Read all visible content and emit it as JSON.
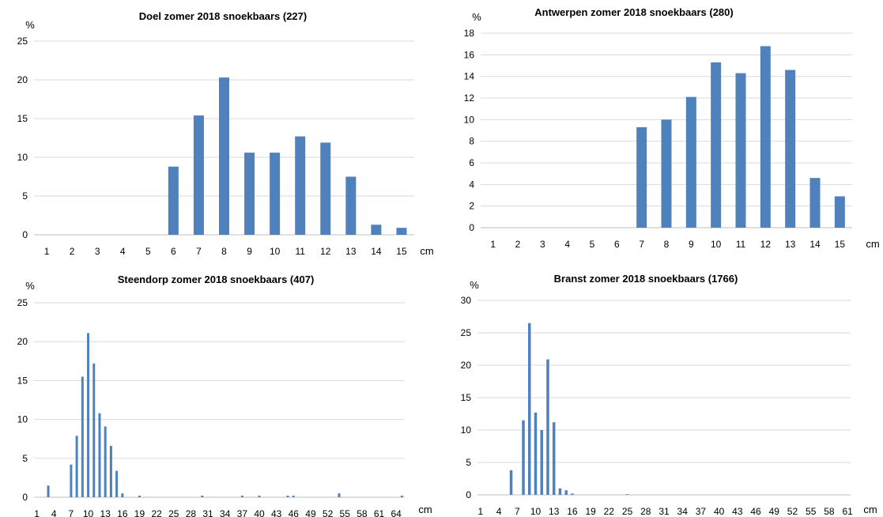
{
  "colors": {
    "bar": "#4f81bd",
    "grid": "#d9d9d9",
    "axis": "#bfbfbf"
  },
  "chart_data": [
    {
      "type": "bar",
      "title": "Doel zomer 2018 snoekbaars (227)",
      "ylabel": "%",
      "xlabel": "cm",
      "ylim": [
        0,
        25
      ],
      "yticks": [
        0,
        5,
        10,
        15,
        20,
        25
      ],
      "grid": true,
      "categories": [
        1,
        2,
        3,
        4,
        5,
        6,
        7,
        8,
        9,
        10,
        11,
        12,
        13,
        14,
        15
      ],
      "values": [
        0,
        0,
        0,
        0,
        0,
        8.8,
        15.4,
        20.3,
        10.6,
        10.6,
        12.7,
        11.9,
        7.5,
        1.3,
        0.9
      ]
    },
    {
      "type": "bar",
      "title": "Antwerpen zomer 2018 snoekbaars (280)",
      "ylabel": "%",
      "xlabel": "cm",
      "ylim": [
        0,
        18
      ],
      "yticks": [
        0,
        2,
        4,
        6,
        8,
        10,
        12,
        14,
        16,
        18
      ],
      "grid": true,
      "categories": [
        1,
        2,
        3,
        4,
        5,
        6,
        7,
        8,
        9,
        10,
        11,
        12,
        13,
        14,
        15
      ],
      "values": [
        0,
        0,
        0,
        0,
        0,
        0,
        9.3,
        10.0,
        12.1,
        15.3,
        14.3,
        16.8,
        14.6,
        4.6,
        2.9
      ]
    },
    {
      "type": "bar",
      "title": "Steendorp zomer 2018 snoekbaars (407)",
      "ylabel": "%",
      "xlabel": "cm",
      "ylim": [
        0,
        25
      ],
      "yticks": [
        0,
        5,
        10,
        15,
        20,
        25
      ],
      "grid": true,
      "categories": [
        1,
        2,
        3,
        4,
        5,
        6,
        7,
        8,
        9,
        10,
        11,
        12,
        13,
        14,
        15,
        16,
        17,
        18,
        19,
        20,
        21,
        22,
        23,
        24,
        25,
        26,
        27,
        28,
        29,
        30,
        31,
        32,
        33,
        34,
        35,
        36,
        37,
        38,
        39,
        40,
        41,
        42,
        43,
        44,
        45,
        46,
        47,
        48,
        49,
        50,
        51,
        52,
        53,
        54,
        55,
        56,
        57,
        58,
        59,
        60,
        61,
        62,
        63,
        64,
        65
      ],
      "xtick_labels": [
        1,
        4,
        7,
        10,
        13,
        16,
        19,
        22,
        25,
        28,
        31,
        34,
        37,
        40,
        43,
        46,
        49,
        52,
        55,
        58,
        61,
        64
      ],
      "values": [
        0,
        0,
        1.5,
        0,
        0,
        0,
        4.2,
        7.9,
        15.5,
        21.1,
        17.2,
        10.8,
        9.1,
        6.6,
        3.4,
        0.5,
        0,
        0,
        0.2,
        0,
        0,
        0,
        0,
        0,
        0,
        0,
        0,
        0,
        0,
        0.2,
        0,
        0,
        0,
        0,
        0,
        0,
        0.2,
        0,
        0,
        0.2,
        0,
        0,
        0,
        0,
        0.2,
        0.2,
        0,
        0,
        0,
        0,
        0,
        0,
        0,
        0.5,
        0,
        0,
        0,
        0,
        0,
        0,
        0,
        0,
        0,
        0,
        0.2
      ]
    },
    {
      "type": "bar",
      "title": "Branst zomer 2018 snoekbaars (1766)",
      "ylabel": "%",
      "xlabel": "cm",
      "ylim": [
        0,
        30
      ],
      "yticks": [
        0,
        5,
        10,
        15,
        20,
        25,
        30
      ],
      "grid": true,
      "categories": [
        1,
        2,
        3,
        4,
        5,
        6,
        7,
        8,
        9,
        10,
        11,
        12,
        13,
        14,
        15,
        16,
        17,
        18,
        19,
        20,
        21,
        22,
        23,
        24,
        25,
        26,
        27,
        28,
        29,
        30,
        31,
        32,
        33,
        34,
        35,
        36,
        37,
        38,
        39,
        40,
        41,
        42,
        43,
        44,
        45,
        46,
        47,
        48,
        49,
        50,
        51,
        52,
        53,
        54,
        55,
        56,
        57,
        58,
        59,
        60,
        61
      ],
      "xtick_labels": [
        1,
        4,
        7,
        10,
        13,
        16,
        19,
        22,
        25,
        28,
        31,
        34,
        37,
        40,
        43,
        46,
        49,
        52,
        55,
        58,
        61
      ],
      "values": [
        0,
        0,
        0,
        0,
        0,
        3.8,
        0,
        11.5,
        26.5,
        12.7,
        10.0,
        20.9,
        11.2,
        1.0,
        0.7,
        0.2,
        0,
        0,
        0,
        0,
        0,
        0,
        0,
        0,
        0.1,
        0,
        0,
        0,
        0,
        0,
        0,
        0,
        0,
        0,
        0,
        0,
        0,
        0,
        0,
        0,
        0,
        0,
        0,
        0,
        0,
        0,
        0,
        0,
        0,
        0,
        0,
        0,
        0,
        0,
        0,
        0,
        0,
        0,
        0,
        0,
        0
      ]
    }
  ]
}
